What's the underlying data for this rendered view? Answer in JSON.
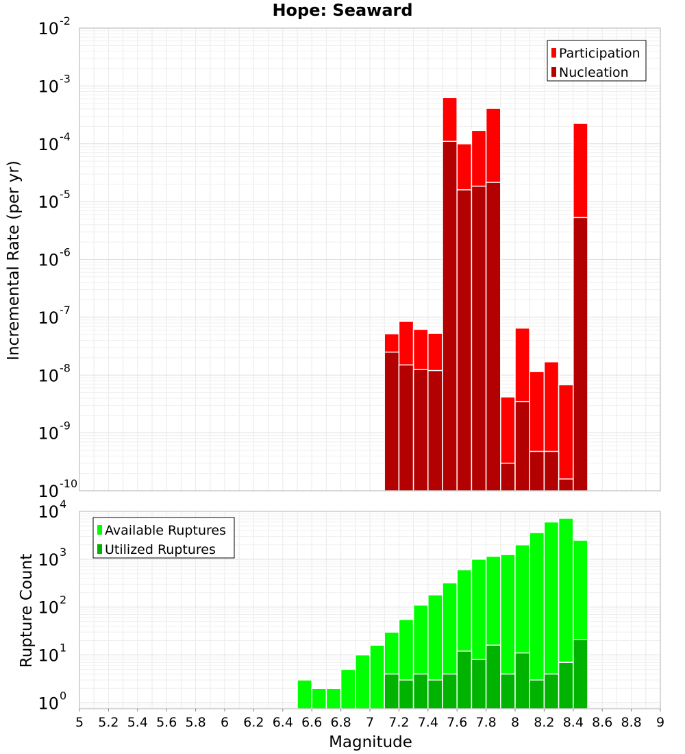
{
  "chart_data": [
    {
      "type": "bar",
      "title": "Hope: Seaward",
      "xlabel": "",
      "ylabel": "Incremental Rate (per yr)",
      "xlim": [
        5,
        9
      ],
      "ylim": [
        1e-10,
        0.01
      ],
      "yscale": "log",
      "grid": true,
      "legend_position": "top-right",
      "bin_width": 0.1,
      "x": [
        7.15,
        7.25,
        7.35,
        7.45,
        7.55,
        7.65,
        7.75,
        7.85,
        7.95,
        8.05,
        8.15,
        8.25,
        8.35,
        8.45
      ],
      "series": [
        {
          "name": "Participation",
          "color": "#ff0000",
          "values": [
            5.2e-08,
            8.5e-08,
            6.2e-08,
            5.3e-08,
            0.00063,
            0.0001,
            0.00017,
            0.00041,
            4.2e-09,
            6.5e-08,
            1.15e-08,
            1.7e-08,
            6.8e-09,
            0.000225
          ]
        },
        {
          "name": "Nucleation",
          "color": "#b30000",
          "values": [
            2.5e-08,
            1.5e-08,
            1.25e-08,
            1.2e-08,
            0.00011,
            1.6e-05,
            1.85e-05,
            2.15e-05,
            3e-10,
            3.5e-09,
            4.8e-10,
            4.8e-10,
            1.6e-10,
            5.3e-06
          ]
        }
      ]
    },
    {
      "type": "bar",
      "title": "",
      "xlabel": "Magnitude",
      "ylabel": "Rupture Count",
      "xlim": [
        5,
        9
      ],
      "ylim": [
        0.75,
        10000
      ],
      "yscale": "log",
      "grid": true,
      "legend_position": "top-left",
      "bin_width": 0.1,
      "x": [
        6.55,
        6.65,
        6.75,
        6.85,
        6.95,
        7.05,
        7.15,
        7.25,
        7.35,
        7.45,
        7.55,
        7.65,
        7.75,
        7.85,
        7.95,
        8.05,
        8.15,
        8.25,
        8.35,
        8.45
      ],
      "xticks": [
        "5",
        "5.2",
        "5.4",
        "5.6",
        "5.8",
        "6",
        "6.2",
        "6.4",
        "6.6",
        "6.8",
        "7",
        "7.2",
        "7.4",
        "7.6",
        "7.8",
        "8",
        "8.2",
        "8.4",
        "8.6",
        "8.8",
        "9"
      ],
      "series": [
        {
          "name": "Available Ruptures",
          "color": "#00ff00",
          "values": [
            3,
            2,
            2,
            5,
            10,
            16,
            30,
            55,
            110,
            180,
            320,
            600,
            1000,
            1150,
            1250,
            2000,
            3600,
            6000,
            7200,
            2500
          ]
        },
        {
          "name": "Utilized Ruptures",
          "color": "#00b300",
          "values": [
            null,
            null,
            null,
            null,
            null,
            null,
            4,
            3,
            4,
            3,
            4,
            12,
            8,
            16,
            4,
            11,
            3,
            4,
            7,
            21
          ]
        }
      ]
    }
  ]
}
